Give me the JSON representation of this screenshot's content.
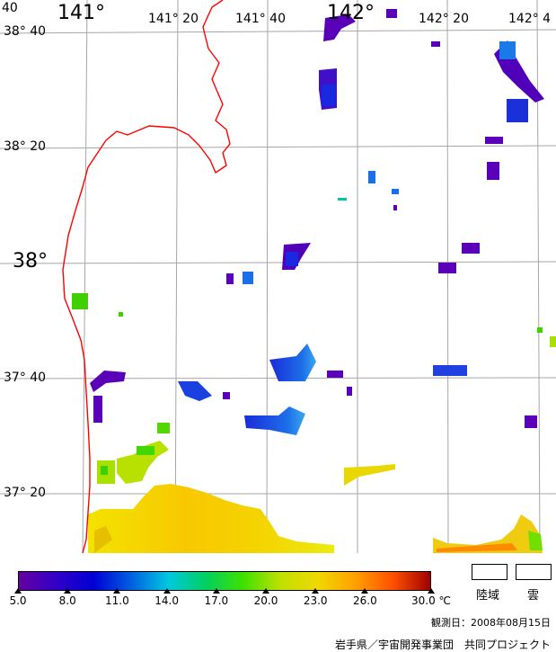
{
  "map": {
    "lon_labels": [
      {
        "text": "141°",
        "size": "big"
      },
      {
        "text": "141° 20",
        "size": "small"
      },
      {
        "text": "141° 40",
        "size": "small"
      },
      {
        "text": "142°",
        "size": "big"
      },
      {
        "text": "142° 20",
        "size": "small"
      },
      {
        "text": "142° 4",
        "size": "small"
      }
    ],
    "lat_labels": [
      {
        "text": "38° 40",
        "size": "small"
      },
      {
        "text": "38° 20",
        "size": "small"
      },
      {
        "text": "38°",
        "size": "big"
      },
      {
        "text": "37° 40",
        "size": "small"
      },
      {
        "text": "37° 20",
        "size": "small"
      }
    ],
    "corner_label": "40",
    "coastline_color": "#ff0000",
    "grid_color": "#a6a6a6"
  },
  "legend": {
    "colors": [
      "#6600a0",
      "#3200c8",
      "#0000d4",
      "#0060e0",
      "#00c8e0",
      "#00d060",
      "#40e000",
      "#c0e000",
      "#f0d800",
      "#ffa000",
      "#ff5000",
      "#a00000"
    ],
    "ticks": [
      "5.0",
      "8.0",
      "11.0",
      "14.0",
      "17.0",
      "20.0",
      "23.0",
      "26.0",
      "30.0"
    ],
    "unit": "℃",
    "land_label": "陸域",
    "cloud_label": "雲"
  },
  "observation": "観測日：2008年08月15日",
  "credit": "岩手県／宇宙開発事業団　共同プロジェクト"
}
